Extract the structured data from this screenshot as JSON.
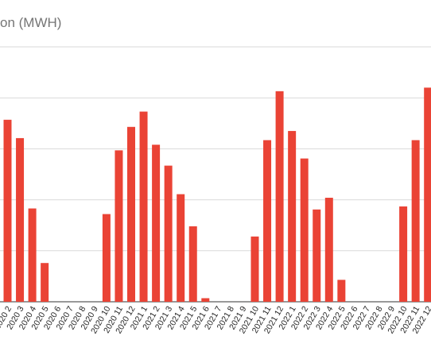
{
  "title_fragment": "on (MWH)",
  "chart_data": {
    "type": "bar",
    "title": "on (MWH)",
    "xlabel": "",
    "ylabel": "",
    "ylim": [
      0,
      5
    ],
    "grid": true,
    "bar_color": "#ea4335",
    "categories": [
      "2020 2",
      "2020 3",
      "2020 4",
      "2020 5",
      "2020 6",
      "2020 7",
      "2020 8",
      "2020 9",
      "2020 10",
      "2020 11",
      "2020 12",
      "2021 1",
      "2021 2",
      "2021 3",
      "2021 4",
      "2021 5",
      "2021 6",
      "2021 7",
      "2021 8",
      "2021 9",
      "2021 10",
      "2021 11",
      "2021 12",
      "2022 1",
      "2022 2",
      "2022 3",
      "2022 4",
      "2022 5",
      "2022 6",
      "2022 7",
      "2022 8",
      "2022 9",
      "2022 10",
      "2022 11",
      "2022 12"
    ],
    "values": [
      3.57,
      3.21,
      1.83,
      0.76,
      0,
      0,
      0,
      0,
      1.72,
      2.97,
      3.43,
      3.73,
      3.08,
      2.67,
      2.11,
      1.48,
      0.07,
      0,
      0,
      0,
      1.28,
      3.17,
      4.13,
      3.35,
      2.81,
      1.81,
      2.04,
      0.43,
      0,
      0,
      0,
      0,
      1.87,
      3.17,
      4.2
    ]
  }
}
